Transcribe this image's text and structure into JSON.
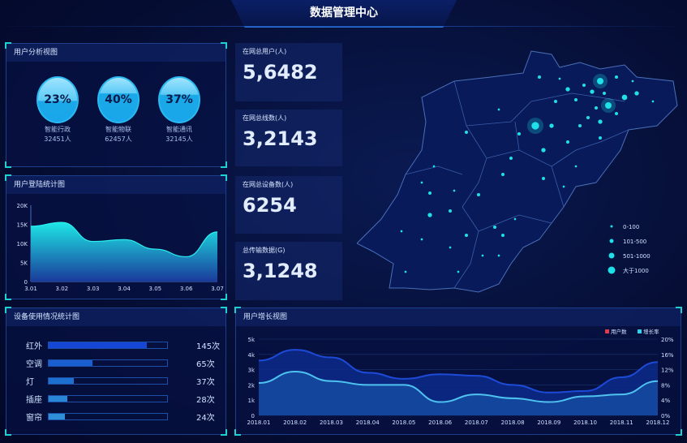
{
  "title": "数据管理中心",
  "user_analysis": {
    "title": "用户分析视图",
    "gauges": [
      {
        "percent": "23%",
        "fill": 0.23,
        "label": "智能行政",
        "count": "32451人"
      },
      {
        "percent": "40%",
        "fill": 0.4,
        "label": "智能物联",
        "count": "62457人"
      },
      {
        "percent": "37%",
        "fill": 0.37,
        "label": "智能通讯",
        "count": "32145人"
      }
    ]
  },
  "stats": [
    {
      "label": "在网总用户(人)",
      "value": "5,6482"
    },
    {
      "label": "在网总线数(人)",
      "value": "3,2143"
    },
    {
      "label": "在网总设备数(人)",
      "value": "6254"
    },
    {
      "label": "总传输数据(G)",
      "value": "3,1248"
    }
  ],
  "map": {
    "legend": [
      {
        "label": "0-100"
      },
      {
        "label": "101-500"
      },
      {
        "label": "501-1000"
      },
      {
        "label": "大于1000"
      }
    ],
    "dot_color": "#1fe0e8"
  },
  "device_usage": {
    "title": "设备使用情况统计图",
    "max": 175,
    "items": [
      {
        "name": "红外",
        "value": 145,
        "label": "145次",
        "color": "#1546d6"
      },
      {
        "name": "空调",
        "value": 65,
        "label": "65次",
        "color": "#1a5fd0"
      },
      {
        "name": "灯",
        "value": 37,
        "label": "37次",
        "color": "#1d6fd0"
      },
      {
        "name": "插座",
        "value": 28,
        "label": "28次",
        "color": "#2a86d6"
      },
      {
        "name": "窗帘",
        "value": 24,
        "label": "24次",
        "color": "#2e8fd8"
      }
    ]
  },
  "chart_data": [
    {
      "type": "area",
      "title": "用户登陆统计图",
      "categories": [
        "3.01",
        "3.02",
        "3.03",
        "3.04",
        "3.05",
        "3.06",
        "3.07"
      ],
      "values": [
        14500,
        15500,
        10500,
        11000,
        8500,
        6500,
        13000
      ],
      "ylim": [
        0,
        20000
      ],
      "yticks": [
        "0",
        "5K",
        "10K",
        "15K",
        "20K"
      ],
      "grid": false
    },
    {
      "type": "line",
      "title": "用户增长视图",
      "categories": [
        "2018.01",
        "2018.02",
        "2018.03",
        "2018.04",
        "2018.05",
        "2018.06",
        "2018.07",
        "2018.08",
        "2018.09",
        "2018.10",
        "2018.11",
        "2018.12"
      ],
      "series": [
        {
          "name": "用户数",
          "axis": "left",
          "values": [
            3600,
            4300,
            3800,
            2800,
            2400,
            2700,
            2600,
            2000,
            1500,
            1600,
            2500,
            3500
          ],
          "color": "#1d4bd8",
          "legend_color": "#e03c50"
        },
        {
          "name": "增长率",
          "axis": "right",
          "values": [
            8.5,
            11.5,
            9,
            8,
            8,
            3.5,
            5.5,
            4.5,
            3.5,
            5,
            5.5,
            9
          ],
          "color": "#4fc3f0",
          "legend_color": "#2fd0e8"
        }
      ],
      "ylim_left": [
        0,
        5000
      ],
      "yticks_left": [
        "0",
        "1k",
        "2k",
        "3k",
        "4k",
        "5k"
      ],
      "ylim_right": [
        0,
        20
      ],
      "yticks_right": [
        "0%",
        "4%",
        "8%",
        "12%",
        "16%",
        "20%"
      ],
      "legend": "top-right",
      "grid": true
    }
  ]
}
